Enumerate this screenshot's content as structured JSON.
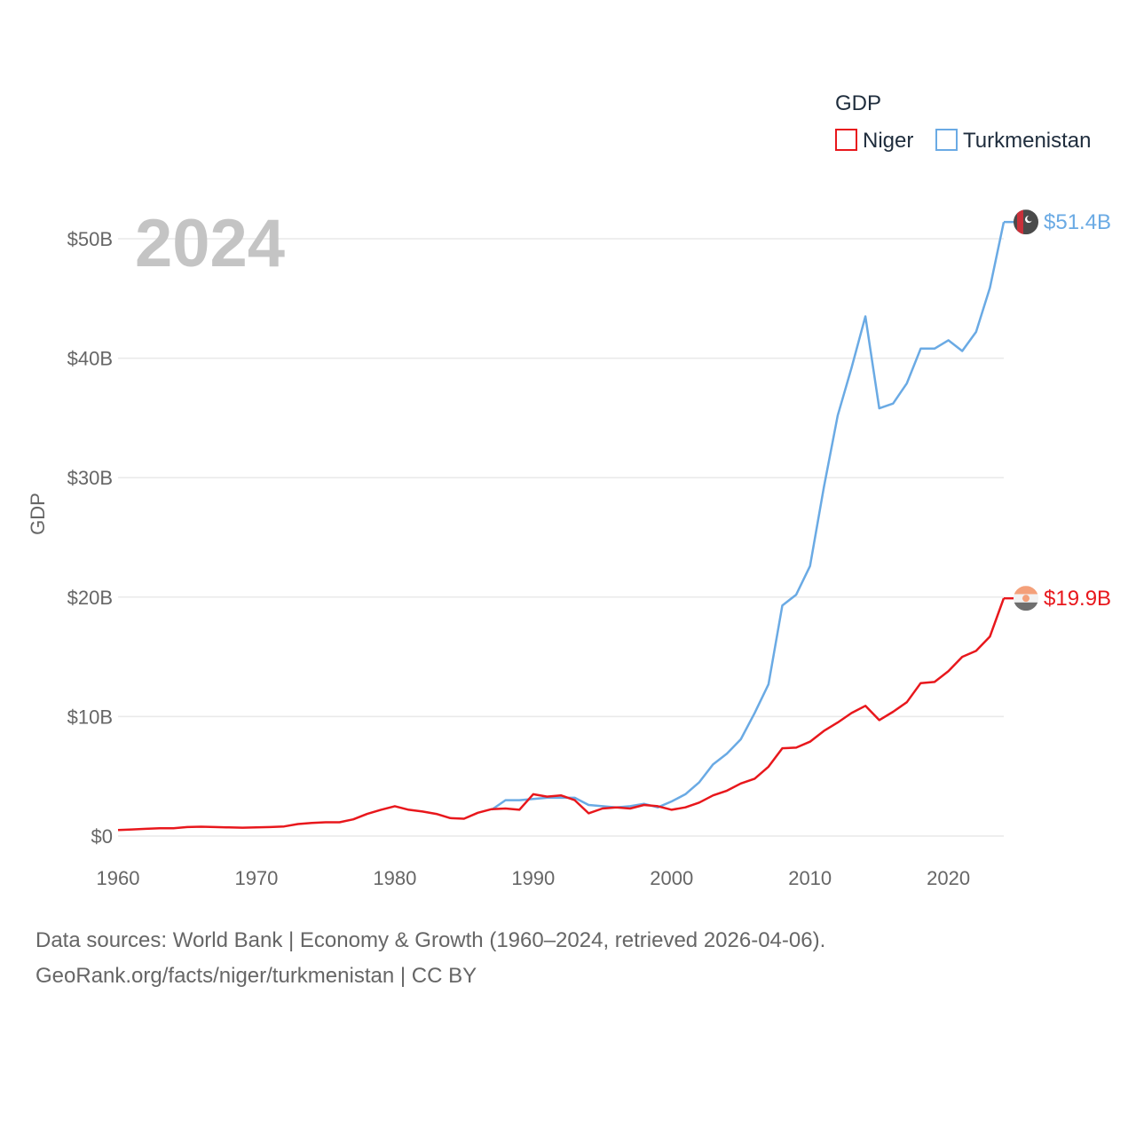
{
  "footer": {
    "line1": "Data sources: World Bank | Economy & Growth (1960–2024, retrieved 2026-04-06).",
    "line2": "GeoRank.org/facts/niger/turkmenistan | CC BY"
  },
  "chart_data": {
    "type": "line",
    "title": "",
    "year_label": "2024",
    "ylabel": "GDP",
    "xlabel": "",
    "xlim": [
      1960,
      2024
    ],
    "ylim": [
      0,
      52
    ],
    "grid": true,
    "x_ticks": [
      1960,
      1970,
      1980,
      1990,
      2000,
      2010,
      2020
    ],
    "y_ticks": [
      {
        "value": 0,
        "label": "$0"
      },
      {
        "value": 10,
        "label": "$10B"
      },
      {
        "value": 20,
        "label": "$20B"
      },
      {
        "value": 30,
        "label": "$30B"
      },
      {
        "value": 40,
        "label": "$40B"
      },
      {
        "value": 50,
        "label": "$50B"
      }
    ],
    "legend": {
      "title": "GDP",
      "position": "top-right",
      "entries": [
        "Niger",
        "Turkmenistan"
      ]
    },
    "series": [
      {
        "name": "Niger",
        "color": "#e8171c",
        "end_label": "$19.9B",
        "x": [
          1960,
          1961,
          1962,
          1963,
          1964,
          1965,
          1966,
          1967,
          1968,
          1969,
          1970,
          1971,
          1972,
          1973,
          1974,
          1975,
          1976,
          1977,
          1978,
          1979,
          1980,
          1981,
          1982,
          1983,
          1984,
          1985,
          1986,
          1987,
          1988,
          1989,
          1990,
          1991,
          1992,
          1993,
          1994,
          1995,
          1996,
          1997,
          1998,
          1999,
          2000,
          2001,
          2002,
          2003,
          2004,
          2005,
          2006,
          2007,
          2008,
          2009,
          2010,
          2011,
          2012,
          2013,
          2014,
          2015,
          2016,
          2017,
          2018,
          2019,
          2020,
          2021,
          2022,
          2023,
          2024
        ],
        "values": [
          0.5,
          0.55,
          0.6,
          0.65,
          0.65,
          0.75,
          0.78,
          0.75,
          0.72,
          0.7,
          0.72,
          0.75,
          0.8,
          1.0,
          1.1,
          1.15,
          1.15,
          1.4,
          1.85,
          2.2,
          2.5,
          2.2,
          2.05,
          1.85,
          1.5,
          1.45,
          1.95,
          2.25,
          2.3,
          2.2,
          3.5,
          3.3,
          3.4,
          3.0,
          1.9,
          2.3,
          2.4,
          2.3,
          2.6,
          2.5,
          2.2,
          2.4,
          2.8,
          3.4,
          3.8,
          4.4,
          4.8,
          5.8,
          7.35,
          7.4,
          7.9,
          8.8,
          9.5,
          10.3,
          10.9,
          9.7,
          10.4,
          11.2,
          12.8,
          12.9,
          13.8,
          15.0,
          15.5,
          16.7,
          19.9
        ]
      },
      {
        "name": "Turkmenistan",
        "color": "#6aaae4",
        "end_label": "$51.4B",
        "x": [
          1987,
          1988,
          1989,
          1990,
          1991,
          1992,
          1993,
          1994,
          1995,
          1996,
          1997,
          1998,
          1999,
          2000,
          2001,
          2002,
          2003,
          2004,
          2005,
          2006,
          2007,
          2008,
          2009,
          2010,
          2011,
          2012,
          2013,
          2014,
          2015,
          2016,
          2017,
          2018,
          2019,
          2020,
          2021,
          2022,
          2023,
          2024
        ],
        "values": [
          2.2,
          3.0,
          3.0,
          3.1,
          3.2,
          3.2,
          3.2,
          2.6,
          2.5,
          2.4,
          2.5,
          2.7,
          2.4,
          2.9,
          3.5,
          4.5,
          6.0,
          6.9,
          8.1,
          10.3,
          12.7,
          19.3,
          20.2,
          22.6,
          29.2,
          35.2,
          39.2,
          43.5,
          35.8,
          36.2,
          37.9,
          40.8,
          40.8,
          41.5,
          40.6,
          42.2,
          45.9,
          51.4
        ]
      }
    ]
  }
}
